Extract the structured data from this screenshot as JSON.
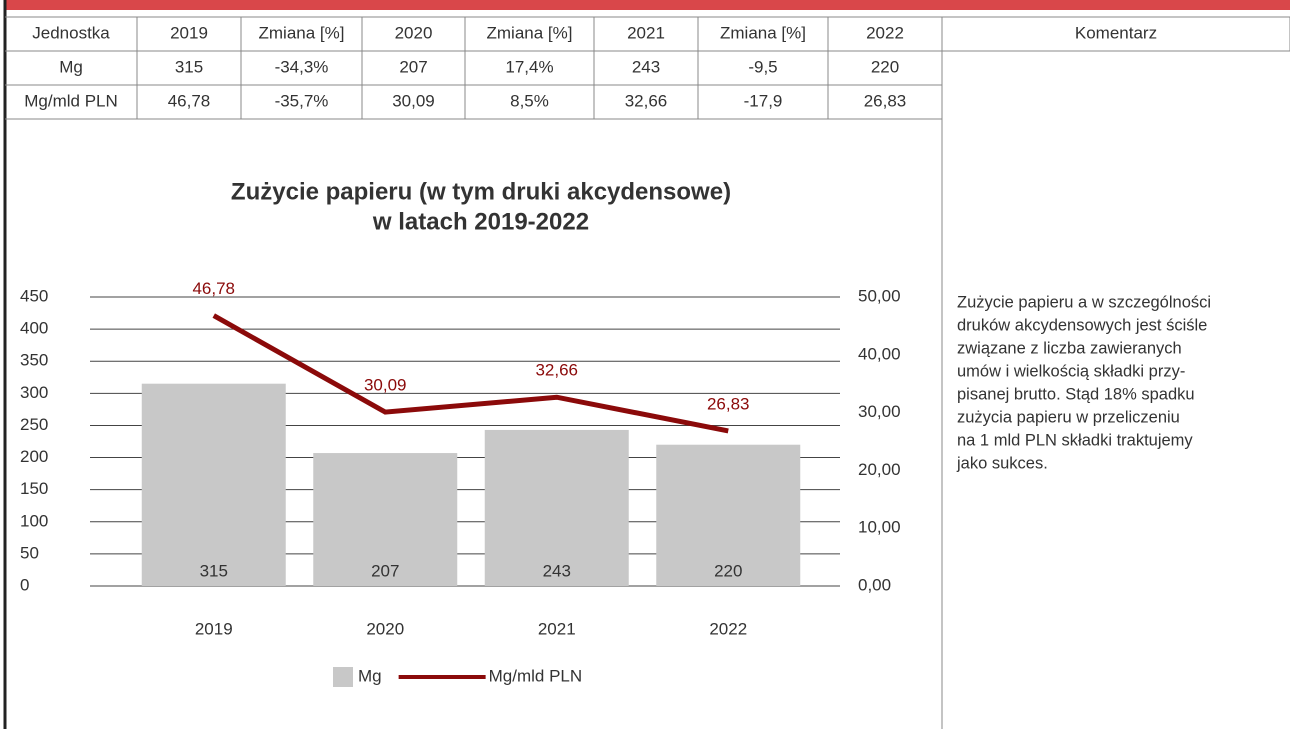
{
  "table": {
    "header": [
      "Jednostka",
      "2019",
      "Zmiana [%]",
      "2020",
      "Zmiana [%]",
      "2021",
      "Zmiana [%]",
      "2022",
      "Komentarz"
    ],
    "rows": [
      [
        "Mg",
        "315",
        "-34,3%",
        "207",
        "17,4%",
        "243",
        "-9,5",
        "220"
      ],
      [
        "Mg/mld PLN",
        "46,78",
        "-35,7%",
        "30,09",
        "8,5%",
        "32,66",
        "-17,9",
        "26,83"
      ]
    ]
  },
  "comment": [
    "Zużycie papieru a w szczególności",
    "druków akcydensowych jest ściśle",
    "związane z liczba zawieranych",
    "umów i wielkością składki przy-",
    "pisanej brutto. Stąd 18% spadku",
    "zużycia papieru w przeliczeniu",
    "na 1 mld PLN składki traktujemy",
    "jako sukces."
  ],
  "chart_data": {
    "type": "bar",
    "title": [
      "Zużycie papieru (w tym druki akcydensowe)",
      "w latach 2019-2022"
    ],
    "categories": [
      "2019",
      "2020",
      "2021",
      "2022"
    ],
    "series": [
      {
        "name": "Mg",
        "type": "bar",
        "color": "#c8c8c8",
        "values": [
          315,
          207,
          243,
          220
        ]
      },
      {
        "name": "Mg/mld PLN",
        "type": "line",
        "axis": "y2",
        "color": "#8b0a0a",
        "values": [
          46.78,
          30.09,
          32.66,
          26.83
        ],
        "value_labels": [
          "46,78",
          "30,09",
          "32,66",
          "26,83"
        ]
      }
    ],
    "ylim": [
      0,
      450
    ],
    "yticks": [
      0,
      50,
      100,
      150,
      200,
      250,
      300,
      350,
      400,
      450
    ],
    "y2lim": [
      0,
      50
    ],
    "y2ticks": [
      {
        "value": 0,
        "label": "0,00"
      },
      {
        "value": 10,
        "label": "10,00"
      },
      {
        "value": 20,
        "label": "20,00"
      },
      {
        "value": 30,
        "label": "30,00"
      },
      {
        "value": 40,
        "label": "40,00"
      },
      {
        "value": 50,
        "label": "50,00"
      }
    ],
    "grid": true,
    "legend": "bottom"
  }
}
